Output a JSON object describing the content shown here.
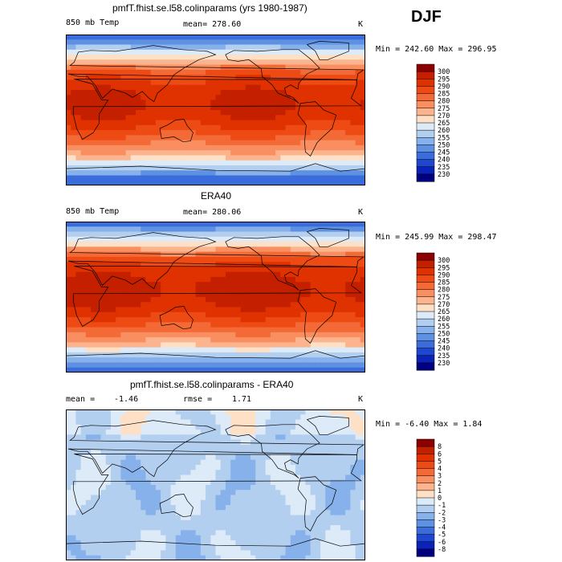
{
  "season": "DJF",
  "chart_data": [
    {
      "type": "heatmap",
      "title": "pmfT.fhist.se.l58.colinparams (yrs 1980-1987)",
      "left_label": "850 mb Temp",
      "stat_label": "mean= 278.60",
      "units": "K",
      "minmax": "Min = 242.60 Max = 296.95",
      "mean": 278.6,
      "min": 242.6,
      "max": 296.95,
      "field": "model",
      "colorbar": {
        "levels": [
          "300",
          "295",
          "290",
          "285",
          "280",
          "275",
          "270",
          "265",
          "260",
          "255",
          "250",
          "245",
          "240",
          "235",
          "230"
        ],
        "colors": [
          "#8b0000",
          "#c42000",
          "#e03200",
          "#ee4a14",
          "#f46a36",
          "#f98e60",
          "#fbb48e",
          "#fde0c6",
          "#ddeaf7",
          "#b3cff0",
          "#87b1ea",
          "#5e91e2",
          "#3a6ddb",
          "#1e46cf",
          "#0a22b8",
          "#000080"
        ]
      }
    },
    {
      "type": "heatmap",
      "title": "ERA40",
      "left_label": "850 mb Temp",
      "stat_label": "mean= 280.06",
      "units": "K",
      "minmax": "Min = 245.99 Max = 298.47",
      "mean": 280.06,
      "min": 245.99,
      "max": 298.47,
      "field": "obs",
      "colorbar": {
        "levels": [
          "300",
          "295",
          "290",
          "285",
          "280",
          "275",
          "270",
          "265",
          "260",
          "255",
          "250",
          "245",
          "240",
          "235",
          "230"
        ],
        "colors": [
          "#8b0000",
          "#c42000",
          "#e03200",
          "#ee4a14",
          "#f46a36",
          "#f98e60",
          "#fbb48e",
          "#fde0c6",
          "#ddeaf7",
          "#b3cff0",
          "#87b1ea",
          "#5e91e2",
          "#3a6ddb",
          "#1e46cf",
          "#0a22b8",
          "#000080"
        ]
      }
    },
    {
      "type": "heatmap",
      "title": "pmfT.fhist.se.l58.colinparams - ERA40",
      "left_label": "mean =",
      "left_value": "-1.46",
      "stat_label": "rmse =",
      "stat_value": "1.71",
      "units": "K",
      "minmax": "Min = -6.40 Max = 1.84",
      "mean": -1.46,
      "rmse": 1.71,
      "min": -6.4,
      "max": 1.84,
      "field": "diff",
      "colorbar": {
        "levels": [
          "8",
          "6",
          "5",
          "4",
          "3",
          "2",
          "1",
          "0",
          "-1",
          "-2",
          "-3",
          "-4",
          "-5",
          "-6",
          "-8"
        ],
        "colors": [
          "#8b0000",
          "#c42000",
          "#e03200",
          "#ee4a14",
          "#f46a36",
          "#f98e60",
          "#fbb48e",
          "#fde0c6",
          "#ddeaf7",
          "#b3cff0",
          "#87b1ea",
          "#5e91e2",
          "#3a6ddb",
          "#1e46cf",
          "#0a22b8",
          "#000080"
        ]
      }
    }
  ]
}
